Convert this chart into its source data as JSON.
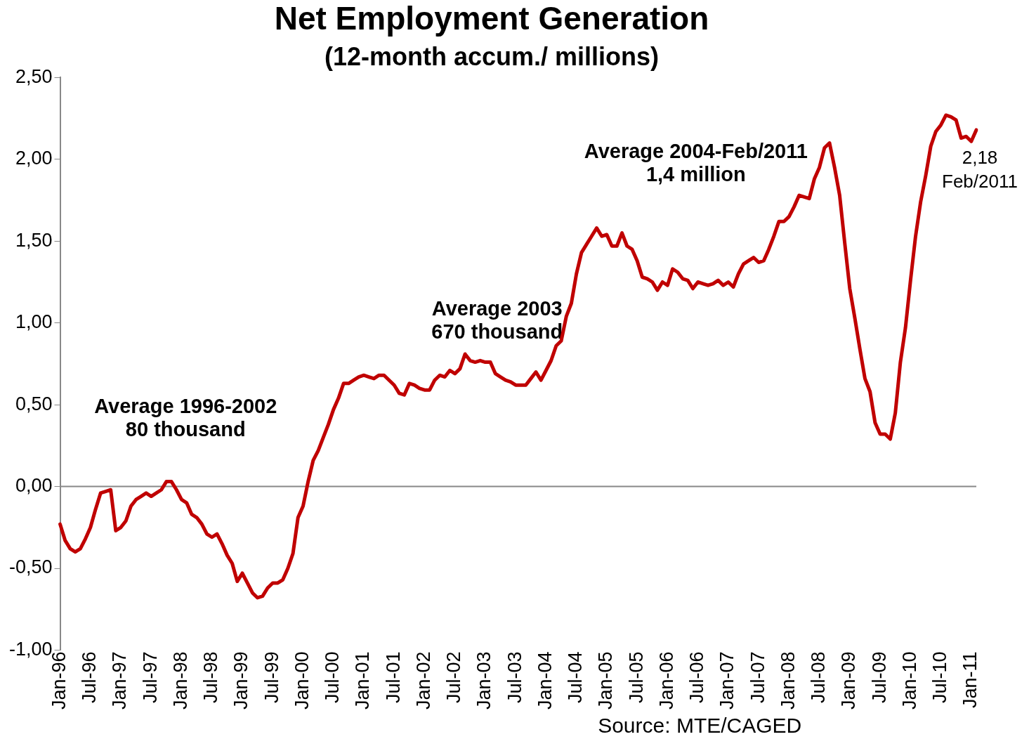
{
  "chart_data": {
    "type": "line",
    "title": "Net Employment Generation",
    "subtitle": "(12-month accum./ millions)",
    "categories": [
      "Jan-96",
      null,
      null,
      null,
      null,
      null,
      "Jul-96",
      null,
      null,
      null,
      null,
      null,
      "Jan-97",
      null,
      null,
      null,
      null,
      null,
      "Jul-97",
      null,
      null,
      null,
      null,
      null,
      "Jan-98",
      null,
      null,
      null,
      null,
      null,
      "Jul-98",
      null,
      null,
      null,
      null,
      null,
      "Jan-99",
      null,
      null,
      null,
      null,
      null,
      "Jul-99",
      null,
      null,
      null,
      null,
      null,
      "Jan-00",
      null,
      null,
      null,
      null,
      null,
      "Jul-00",
      null,
      null,
      null,
      null,
      null,
      "Jan-01",
      null,
      null,
      null,
      null,
      null,
      "Jul-01",
      null,
      null,
      null,
      null,
      null,
      "Jan-02",
      null,
      null,
      null,
      null,
      null,
      "Jul-02",
      null,
      null,
      null,
      null,
      null,
      "Jan-03",
      null,
      null,
      null,
      null,
      null,
      "Jul-03",
      null,
      null,
      null,
      null,
      null,
      "Jan-04",
      null,
      null,
      null,
      null,
      null,
      "Jul-04",
      null,
      null,
      null,
      null,
      null,
      "Jan-05",
      null,
      null,
      null,
      null,
      null,
      "Jul-05",
      null,
      null,
      null,
      null,
      null,
      "Jan-06",
      null,
      null,
      null,
      null,
      null,
      "Jul-06",
      null,
      null,
      null,
      null,
      null,
      "Jan-07",
      null,
      null,
      null,
      null,
      null,
      "Jul-07",
      null,
      null,
      null,
      null,
      null,
      "Jan-08",
      null,
      null,
      null,
      null,
      null,
      "Jul-08",
      null,
      null,
      null,
      null,
      null,
      "Jan-09",
      null,
      null,
      null,
      null,
      null,
      "Jul-09",
      null,
      null,
      null,
      null,
      null,
      "Jan-10",
      null,
      null,
      null,
      null,
      null,
      "Jul-10",
      null,
      null,
      null,
      null,
      null,
      "Jan-11",
      null
    ],
    "values": [
      -0.23,
      -0.33,
      -0.38,
      -0.4,
      -0.38,
      -0.32,
      -0.25,
      -0.14,
      -0.04,
      -0.03,
      -0.02,
      -0.27,
      -0.25,
      -0.21,
      -0.12,
      -0.08,
      -0.06,
      -0.04,
      -0.06,
      -0.04,
      -0.02,
      0.03,
      0.03,
      -0.02,
      -0.08,
      -0.1,
      -0.17,
      -0.19,
      -0.23,
      -0.29,
      -0.31,
      -0.29,
      -0.35,
      -0.42,
      -0.47,
      -0.58,
      -0.53,
      -0.59,
      -0.65,
      -0.68,
      -0.67,
      -0.62,
      -0.59,
      -0.59,
      -0.57,
      -0.5,
      -0.41,
      -0.19,
      -0.12,
      0.03,
      0.16,
      0.22,
      0.3,
      0.38,
      0.47,
      0.54,
      0.63,
      0.63,
      0.65,
      0.67,
      0.68,
      0.67,
      0.66,
      0.68,
      0.68,
      0.65,
      0.62,
      0.57,
      0.56,
      0.63,
      0.62,
      0.6,
      0.59,
      0.59,
      0.65,
      0.68,
      0.67,
      0.71,
      0.69,
      0.72,
      0.81,
      0.77,
      0.76,
      0.77,
      0.76,
      0.76,
      0.69,
      0.67,
      0.65,
      0.64,
      0.62,
      0.62,
      0.62,
      0.66,
      0.7,
      0.65,
      0.71,
      0.77,
      0.86,
      0.89,
      1.04,
      1.12,
      1.3,
      1.43,
      1.48,
      1.53,
      1.58,
      1.53,
      1.54,
      1.47,
      1.47,
      1.55,
      1.47,
      1.45,
      1.38,
      1.28,
      1.27,
      1.25,
      1.2,
      1.25,
      1.23,
      1.33,
      1.31,
      1.27,
      1.26,
      1.21,
      1.25,
      1.24,
      1.23,
      1.24,
      1.26,
      1.23,
      1.25,
      1.22,
      1.3,
      1.36,
      1.38,
      1.4,
      1.37,
      1.38,
      1.45,
      1.53,
      1.62,
      1.62,
      1.65,
      1.71,
      1.78,
      1.77,
      1.76,
      1.88,
      1.95,
      2.07,
      2.1,
      1.95,
      1.78,
      1.49,
      1.21,
      1.03,
      0.84,
      0.66,
      0.58,
      0.39,
      0.32,
      0.32,
      0.29,
      0.45,
      0.76,
      0.97,
      1.26,
      1.53,
      1.74,
      1.9,
      2.08,
      2.17,
      2.21,
      2.27,
      2.26,
      2.24,
      2.13,
      2.14,
      2.11,
      2.18
    ],
    "value_labels": [
      null,
      null,
      null,
      null,
      null,
      null,
      null,
      null,
      null,
      null,
      null,
      null,
      null,
      null,
      null,
      null,
      null,
      null,
      null,
      null,
      null,
      null,
      null,
      null,
      null,
      null,
      null,
      null,
      null,
      null,
      null,
      null,
      null,
      null,
      null,
      null,
      null,
      null,
      null,
      null,
      null,
      null,
      null,
      null,
      null,
      null,
      null,
      null,
      null,
      null,
      null,
      null,
      null,
      null,
      null,
      null,
      null,
      null,
      null,
      null,
      null,
      null,
      null,
      null,
      null,
      null,
      null,
      null,
      null,
      null,
      null,
      null,
      null,
      null,
      null,
      null,
      null,
      null,
      null,
      null,
      null,
      null,
      null,
      null,
      null,
      null,
      null,
      null,
      null,
      null,
      null,
      null,
      null,
      null,
      null,
      null,
      null,
      null,
      null,
      null,
      null,
      null,
      null,
      null,
      null,
      null,
      null,
      null,
      null,
      null,
      null,
      null,
      null,
      null,
      null,
      null,
      null,
      null,
      null,
      null,
      null,
      null,
      null,
      null,
      null,
      null,
      null,
      null,
      null,
      null,
      null,
      null,
      null,
      null,
      null,
      null,
      null,
      null,
      null,
      null,
      null,
      null,
      null,
      null,
      null,
      null,
      null,
      null,
      null,
      null,
      null,
      null,
      null,
      null,
      null,
      null,
      null,
      null,
      null,
      null,
      null,
      null,
      null,
      null,
      null,
      null,
      null,
      null,
      null,
      null,
      null,
      null,
      null,
      null,
      null,
      null,
      null,
      null,
      null,
      null,
      null,
      "2,18\nFeb/2011"
    ],
    "color": "#c00000",
    "ylim": [
      -1,
      2.5
    ],
    "yticks": [
      {
        "value": -1,
        "label": "-1,00"
      },
      {
        "value": -0.5,
        "label": "-0,50"
      },
      {
        "value": 0,
        "label": "0,00"
      },
      {
        "value": 0.5,
        "label": "0,50"
      },
      {
        "value": 1,
        "label": "1,00"
      },
      {
        "value": 1.5,
        "label": "1,50"
      },
      {
        "value": 2,
        "label": "2,00"
      },
      {
        "value": 2.5,
        "label": "2,50"
      }
    ],
    "ref_lines": [
      {
        "axis": "y",
        "value": 0,
        "color": "#888888"
      }
    ],
    "grid": false,
    "legend": false,
    "marker": "none",
    "line_style": "solid",
    "annotations": [
      "Average 1996-2002\n80 thousand",
      "Average 2003\n670 thousand",
      "Average 2004-Feb/2011\n1,4 million",
      "Source: MTE/CAGED"
    ]
  }
}
